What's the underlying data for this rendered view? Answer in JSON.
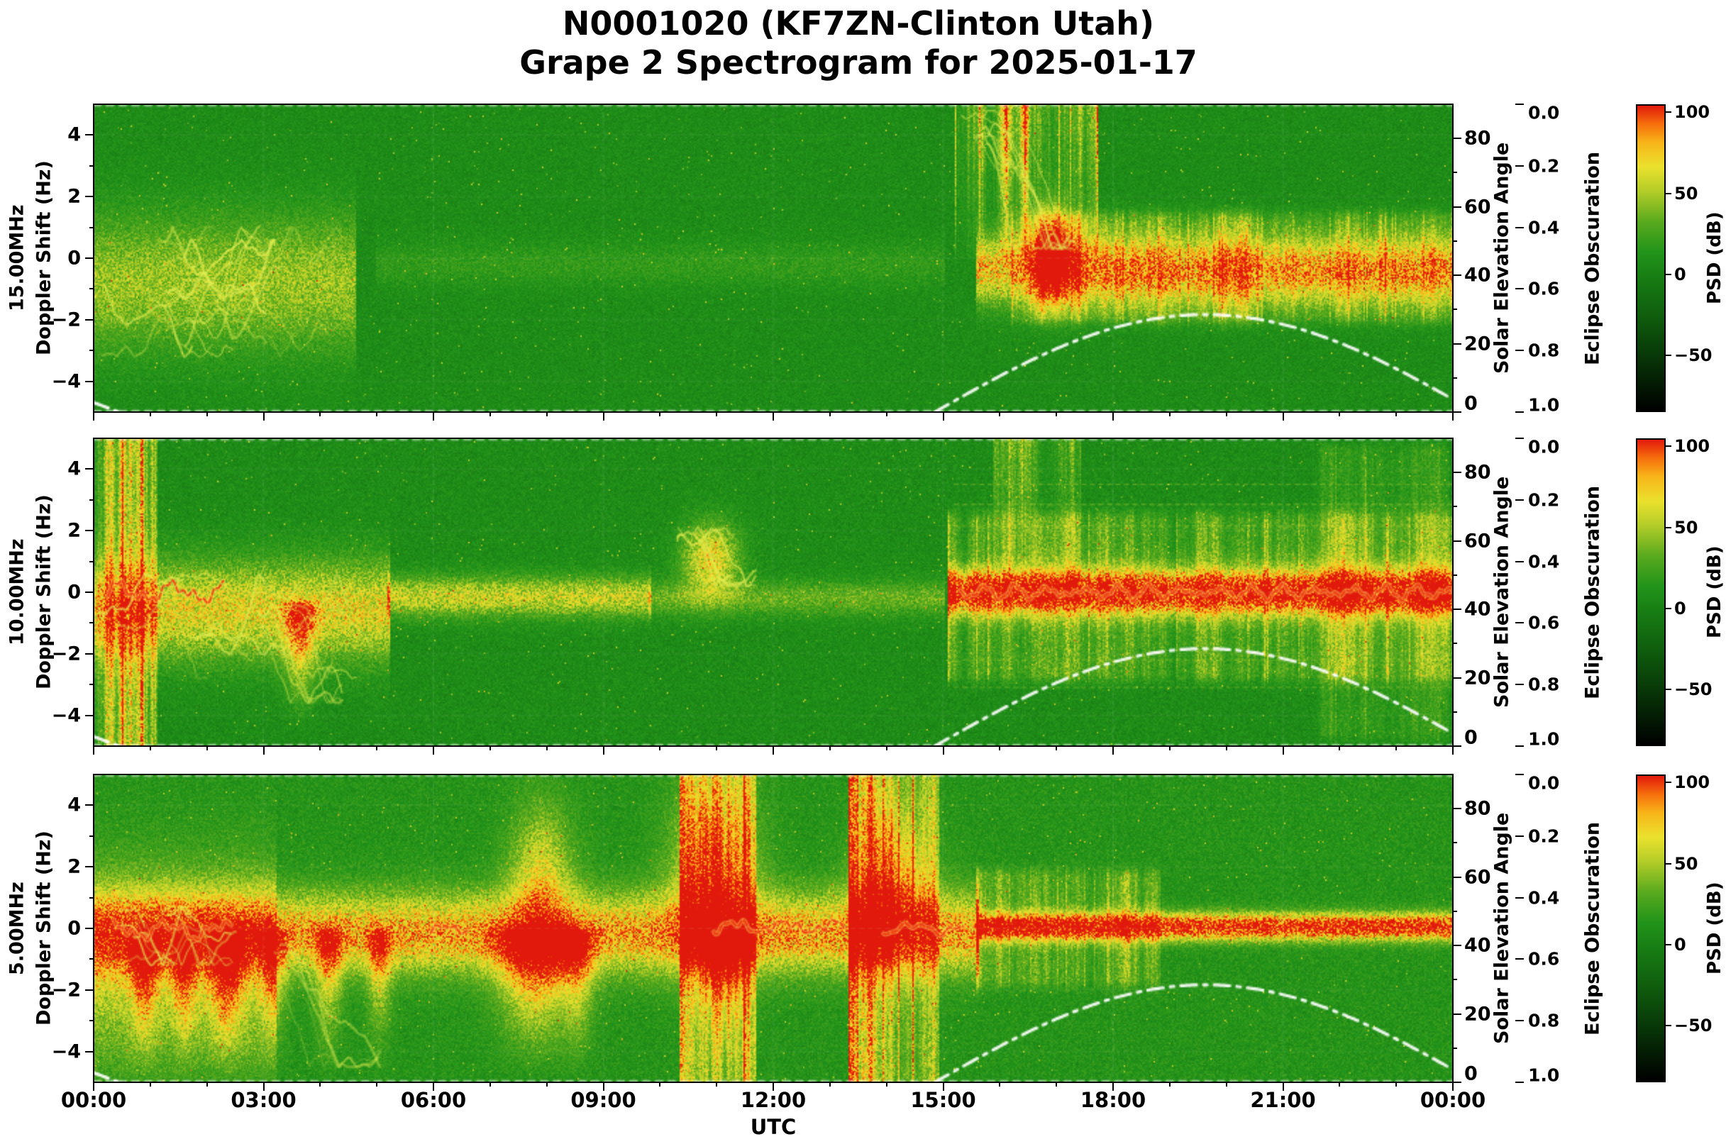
{
  "chart_data": {
    "type": "heatmap",
    "title": [
      "N0001020 (KF7ZN-Clinton Utah)",
      "Grape 2 Spectrogram for 2025-01-17"
    ],
    "station_node": "N0001020",
    "receiver": "KF7ZN-Clinton Utah",
    "date": "2025-01-17",
    "x": {
      "label": "UTC",
      "range_hours": [
        0,
        24
      ],
      "major_ticks": [
        "00:00",
        "03:00",
        "06:00",
        "09:00",
        "12:00",
        "15:00",
        "18:00",
        "21:00",
        "00:00"
      ],
      "minor_tick_hours": 1
    },
    "doppler_axis": {
      "label": "Doppler Shift (Hz)",
      "ylim": [
        -5,
        5
      ],
      "ticks": [
        {
          "v": 4,
          "label": "4"
        },
        {
          "v": 2,
          "label": "2"
        },
        {
          "v": 0,
          "label": "0"
        },
        {
          "v": -2,
          "label": "−2"
        },
        {
          "v": -4,
          "label": "−4"
        }
      ]
    },
    "solar_axis": {
      "label": "Solar Elevation Angle",
      "range": [
        0,
        90
      ],
      "ticks": [
        80,
        60,
        40,
        20,
        0
      ]
    },
    "obscuration_axis": {
      "label": "Eclipse Obscuration",
      "range": [
        0,
        1
      ],
      "ticks": [
        "0.0",
        "0.2",
        "0.4",
        "0.6",
        "0.8",
        "1.0"
      ]
    },
    "colorbar": {
      "label": "PSD (dB)",
      "range": [
        -85,
        105
      ],
      "ticks": [
        {
          "v": 100,
          "label": "100"
        },
        {
          "v": 50,
          "label": "50"
        },
        {
          "v": 0,
          "label": "0"
        },
        {
          "v": -50,
          "label": "−50"
        }
      ]
    },
    "solar_curve": {
      "sunrise_utc": 14.85,
      "solar_noon_utc": 19.6,
      "sunset_utc": 24.4,
      "peak_elevation_deg": 28.5,
      "prev_day_sunset_utc": 0.45,
      "prev_midnight_elevation_deg": 2.8
    },
    "panels": [
      {
        "freq_label": "15.00MHz",
        "base": 0.49,
        "sigma": 0.045,
        "events": [
          {
            "type": "band",
            "t0": 0,
            "t1": 4.6,
            "yc": -0.8,
            "w": 1.5,
            "amp": 0.2
          },
          {
            "type": "scribble",
            "t0": 0.1,
            "t1": 4.4,
            "y0": -3.2,
            "y1": 1.0,
            "n": 16,
            "alpha": 0.55
          },
          {
            "type": "scribble",
            "t0": 1.2,
            "t1": 3.4,
            "y0": -2.6,
            "y1": 0.6,
            "n": 8,
            "alpha": 0.7
          },
          {
            "type": "band",
            "t0": 5,
            "t1": 15,
            "yc": -0.2,
            "w": 0.5,
            "amp": 0.06
          },
          {
            "type": "vstreaks",
            "t0": 15.2,
            "t1": 17.7,
            "y0": 5,
            "y1": 0.2,
            "amp": 0.5,
            "spiky": 3,
            "fade": 1
          },
          {
            "type": "scribble",
            "t0": 15.3,
            "t1": 17.6,
            "y0": 0.3,
            "y1": 4.8,
            "n": 9,
            "alpha": 0.5,
            "drift": "down"
          },
          {
            "type": "band",
            "t0": 15.6,
            "t1": 24,
            "yc": -0.4,
            "w": 0.75,
            "amp": 0.34
          },
          {
            "type": "vstreaks",
            "t0": 16.2,
            "t1": 24,
            "y0": 1.2,
            "y1": -1.8,
            "amp": 0.2,
            "spiky": 2
          },
          {
            "type": "blob",
            "tc": 16.95,
            "tw": 0.22,
            "yc": 0.1,
            "yw": 1.0,
            "amp": 0.45
          }
        ]
      },
      {
        "freq_label": "10.00MHz",
        "base": 0.49,
        "sigma": 0.05,
        "events": [
          {
            "type": "vstreaks",
            "t0": 0,
            "t1": 1.1,
            "y0": 5,
            "y1": -5,
            "amp": 0.4,
            "spiky": 2.5
          },
          {
            "type": "band",
            "t0": 0,
            "t1": 5.2,
            "yc": -0.6,
            "w": 1.1,
            "amp": 0.3
          },
          {
            "type": "scribble",
            "t0": 0.1,
            "t1": 5,
            "y0": -2.8,
            "y1": 0.6,
            "n": 12,
            "alpha": 0.6
          },
          {
            "type": "trace_red",
            "t0": 0.25,
            "t1": 2.3,
            "yc": 0,
            "jitter": 0.45
          },
          {
            "type": "plume",
            "tc": 3.65,
            "tw": 0.18,
            "y0": -0.6,
            "y1": -4.6,
            "amp": 0.38
          },
          {
            "type": "scribble",
            "t0": 2.9,
            "t1": 4.4,
            "y0": -3.6,
            "y1": -0.4,
            "n": 6,
            "alpha": 0.5,
            "drift": "down"
          },
          {
            "type": "band",
            "t0": 5.2,
            "t1": 9.8,
            "yc": -0.15,
            "w": 0.45,
            "amp": 0.26
          },
          {
            "type": "band",
            "t0": 9.8,
            "t1": 15,
            "yc": -0.2,
            "w": 0.4,
            "amp": 0.14
          },
          {
            "type": "scribble",
            "t0": 10.3,
            "t1": 11.7,
            "y0": 0.2,
            "y1": 2.1,
            "n": 7,
            "alpha": 0.65,
            "drift": "down"
          },
          {
            "type": "blob",
            "tc": 10.9,
            "tw": 0.35,
            "yc": 1.1,
            "yw": 0.8,
            "amp": 0.32
          },
          {
            "type": "band",
            "t0": 15.1,
            "t1": 24,
            "yc": 0,
            "w": 0.5,
            "amp": 0.52
          },
          {
            "type": "vstreaks",
            "t0": 15.1,
            "t1": 24,
            "y0": 2.3,
            "y1": -2.6,
            "amp": 0.2,
            "spiky": 2
          },
          {
            "type": "vstreaks",
            "t0": 15.9,
            "t1": 17.4,
            "y0": 5,
            "y1": 0.3,
            "amp": 0.28,
            "spiky": 3,
            "fade": 1
          },
          {
            "type": "trace_red",
            "t0": 15.3,
            "t1": 24,
            "yc": 0,
            "jitter": 0.3
          },
          {
            "type": "hlines",
            "t0": 15.2,
            "t1": 24,
            "ys": [
              2.15,
              2.85,
              3.5,
              -2.2,
              -3.1
            ],
            "alpha": 0.3
          },
          {
            "type": "vstreaks",
            "t0": 21.5,
            "t1": 23.9,
            "y0": 4.5,
            "y1": -4.5,
            "amp": 0.1,
            "spiky": 2
          }
        ]
      },
      {
        "freq_label": "5.00MHz",
        "base": 0.52,
        "sigma": 0.055,
        "events": [
          {
            "type": "band",
            "t0": 0,
            "t1": 15.6,
            "yc": -0.15,
            "w": 0.9,
            "amp": 0.36
          },
          {
            "type": "band",
            "t0": 0,
            "t1": 3.2,
            "yc": -1.2,
            "w": 2.2,
            "amp": 0.22
          },
          {
            "type": "scribble",
            "t0": 0.2,
            "t1": 2.7,
            "y0": -1.2,
            "y1": 0.7,
            "n": 9,
            "alpha": 0.6
          },
          {
            "type": "trace_red",
            "t0": 0.35,
            "t1": 2.45,
            "yc": -0.05,
            "jitter": 0.4
          },
          {
            "type": "plume",
            "tc": 0.9,
            "tw": 0.16,
            "y0": -0.3,
            "y1": -5,
            "amp": 0.38
          },
          {
            "type": "plume",
            "tc": 1.6,
            "tw": 0.14,
            "y0": -0.3,
            "y1": -5,
            "amp": 0.34
          },
          {
            "type": "plume",
            "tc": 2.35,
            "tw": 0.2,
            "y0": -0.2,
            "y1": -5,
            "amp": 0.46
          },
          {
            "type": "plume",
            "tc": 3.2,
            "tw": 0.15,
            "y0": -0.3,
            "y1": -5,
            "amp": 0.3
          },
          {
            "type": "plume",
            "tc": 4.15,
            "tw": 0.16,
            "y0": -0.3,
            "y1": -5,
            "amp": 0.34
          },
          {
            "type": "plume",
            "tc": 5.05,
            "tw": 0.14,
            "y0": -0.3,
            "y1": -5,
            "amp": 0.3
          },
          {
            "type": "plume",
            "tc": 7.8,
            "tw": 0.45,
            "y0": -0.2,
            "y1": -5,
            "amp": 0.46
          },
          {
            "type": "blob",
            "tc": 7.9,
            "tw": 0.4,
            "yc": 1.4,
            "yw": 1.8,
            "amp": 0.26
          },
          {
            "type": "plume",
            "tc": 8.55,
            "tw": 0.2,
            "y0": -0.3,
            "y1": -5,
            "amp": 0.3
          },
          {
            "type": "vstreaks",
            "t0": 10.35,
            "t1": 11.65,
            "y0": 5,
            "y1": -5,
            "amp": 0.46,
            "spiky": 2
          },
          {
            "type": "blob",
            "tc": 10.95,
            "tw": 0.5,
            "yc": 1.8,
            "yw": 2.2,
            "amp": 0.32
          },
          {
            "type": "plume",
            "tc": 11.15,
            "tw": 0.25,
            "y0": 0,
            "y1": -5,
            "amp": 0.3
          },
          {
            "type": "vstreaks",
            "t0": 13.35,
            "t1": 14.9,
            "y0": 5,
            "y1": -5,
            "amp": 0.4,
            "spiky": 2.2
          },
          {
            "type": "blob",
            "tc": 14.1,
            "tw": 0.45,
            "yc": 1.5,
            "yw": 1.8,
            "amp": 0.26
          },
          {
            "type": "trace_red",
            "t0": 5.95,
            "t1": 6.6,
            "yc": 0,
            "jitter": 0.2
          },
          {
            "type": "trace_red",
            "t0": 10.95,
            "t1": 13.25,
            "yc": 0.05,
            "jitter": 0.3
          },
          {
            "type": "trace_red",
            "t0": 13.95,
            "t1": 15.35,
            "yc": 0,
            "jitter": 0.25
          },
          {
            "type": "band",
            "t0": 15.6,
            "t1": 24,
            "yc": 0.05,
            "w": 0.3,
            "amp": 0.55
          },
          {
            "type": "vstreaks",
            "t0": 15.6,
            "t1": 18.8,
            "y0": 1.6,
            "y1": -1.6,
            "amp": 0.16,
            "spiky": 2
          },
          {
            "type": "scribble",
            "t0": 3.0,
            "t1": 5.2,
            "y0": -4.5,
            "y1": -0.5,
            "n": 5,
            "alpha": 0.4,
            "drift": "down"
          }
        ]
      }
    ]
  },
  "colors": {
    "figure_background": "#ffffff",
    "spectrogram_base_green": "#1e8c19",
    "solar_curve": "#ffffff",
    "doppler_trace_red": "#e82a0f",
    "colormap_stops": [
      [
        0.0,
        [
          0,
          0,
          0
        ]
      ],
      [
        0.18,
        [
          8,
          56,
          8
        ]
      ],
      [
        0.32,
        [
          16,
          96,
          14
        ]
      ],
      [
        0.44,
        [
          24,
          126,
          20
        ]
      ],
      [
        0.52,
        [
          34,
          148,
          26
        ]
      ],
      [
        0.62,
        [
          90,
          170,
          30
        ]
      ],
      [
        0.72,
        [
          180,
          205,
          40
        ]
      ],
      [
        0.8,
        [
          235,
          225,
          45
        ]
      ],
      [
        0.88,
        [
          248,
          180,
          25
        ]
      ],
      [
        0.94,
        [
          246,
          110,
          12
        ]
      ],
      [
        1.0,
        [
          225,
          25,
          12
        ]
      ]
    ]
  }
}
